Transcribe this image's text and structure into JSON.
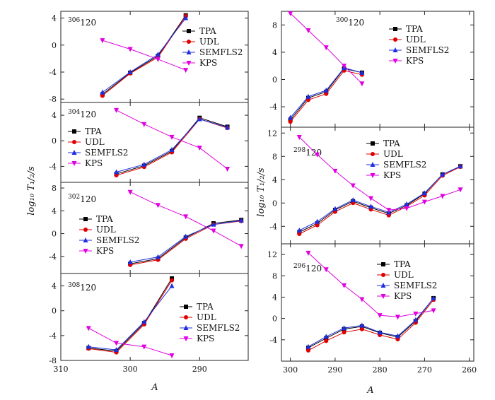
{
  "figure": {
    "ylabel": "log₁₀ T₁/₂/s",
    "xlabel": "A",
    "legend_labels": [
      "TPA",
      "UDL",
      "SEMFLS2",
      "KPS"
    ]
  },
  "colors": {
    "TPA": "#000000",
    "UDL": "#e00000",
    "SEMFLS2": "#1f2fe0",
    "KPS": "#e000e0"
  },
  "chart_data": [
    {
      "type": "line",
      "panel_label": "306 120",
      "x_ticks": [
        310,
        300,
        290
      ],
      "xlim": [
        310,
        283
      ],
      "ylim": [
        -8.5,
        5
      ],
      "y_ticks": [
        4,
        0,
        -4,
        -8
      ],
      "series": [
        {
          "name": "TPA",
          "x": [
            304,
            300,
            296,
            292
          ],
          "y": [
            -7.3,
            -4.1,
            -1.6,
            4.4
          ]
        },
        {
          "name": "UDL",
          "x": [
            304,
            300,
            296,
            292
          ],
          "y": [
            -7.5,
            -4.2,
            -1.8,
            4.3
          ]
        },
        {
          "name": "SEMFLS2",
          "x": [
            304,
            300,
            296,
            292
          ],
          "y": [
            -7.0,
            -4.0,
            -1.4,
            4.0
          ]
        },
        {
          "name": "KPS",
          "x": [
            304,
            300,
            296,
            292
          ],
          "y": [
            0.7,
            -0.6,
            -2.1,
            -3.7
          ]
        }
      ]
    },
    {
      "type": "line",
      "panel_label": "304 120",
      "x_ticks": [
        310,
        300,
        290
      ],
      "xlim": [
        310,
        283
      ],
      "ylim": [
        -6.5,
        6
      ],
      "y_ticks": [
        4,
        0,
        -4
      ],
      "series": [
        {
          "name": "TPA",
          "x": [
            302,
            298,
            294,
            290,
            286
          ],
          "y": [
            -5.2,
            -3.9,
            -1.6,
            3.6,
            2.2
          ]
        },
        {
          "name": "UDL",
          "x": [
            302,
            298,
            294,
            290,
            286
          ],
          "y": [
            -5.4,
            -4.1,
            -1.8,
            3.4,
            2.0
          ]
        },
        {
          "name": "SEMFLS2",
          "x": [
            302,
            298,
            294,
            290,
            286
          ],
          "y": [
            -4.9,
            -3.7,
            -1.4,
            3.4,
            2.1
          ]
        },
        {
          "name": "KPS",
          "x": [
            302,
            298,
            294,
            290,
            286
          ],
          "y": [
            4.8,
            2.6,
            0.6,
            -1.1,
            -4.4
          ]
        }
      ]
    },
    {
      "type": "line",
      "panel_label": "302 120",
      "x_ticks": [
        310,
        300,
        290
      ],
      "xlim": [
        310,
        283
      ],
      "ylim": [
        -7,
        9
      ],
      "y_ticks": [
        8,
        4,
        0,
        -4
      ],
      "series": [
        {
          "name": "TPA",
          "x": [
            300,
            296,
            292,
            288,
            284
          ],
          "y": [
            -5.3,
            -4.4,
            -0.7,
            1.8,
            2.4
          ]
        },
        {
          "name": "UDL",
          "x": [
            300,
            296,
            292,
            288,
            284
          ],
          "y": [
            -5.5,
            -4.6,
            -0.9,
            1.6,
            2.2
          ]
        },
        {
          "name": "SEMFLS2",
          "x": [
            300,
            296,
            292,
            288,
            284
          ],
          "y": [
            -5.0,
            -4.1,
            -0.5,
            1.6,
            2.3
          ]
        },
        {
          "name": "KPS",
          "x": [
            300,
            296,
            292,
            288,
            284
          ],
          "y": [
            7.3,
            5.0,
            3.0,
            0.5,
            -2.2
          ]
        }
      ]
    },
    {
      "type": "line",
      "panel_label": "308 120",
      "x_ticks": [
        310,
        300,
        290
      ],
      "xlim": [
        310,
        283
      ],
      "ylim": [
        -8,
        6
      ],
      "y_ticks": [
        4,
        0,
        -4,
        -8
      ],
      "series": [
        {
          "name": "TPA",
          "x": [
            306,
            302,
            298,
            294
          ],
          "y": [
            -6.0,
            -6.5,
            -2.0,
            5.2
          ]
        },
        {
          "name": "UDL",
          "x": [
            306,
            302,
            298,
            294
          ],
          "y": [
            -6.1,
            -6.7,
            -2.2,
            4.9
          ]
        },
        {
          "name": "SEMFLS2",
          "x": [
            306,
            302,
            298,
            294
          ],
          "y": [
            -5.8,
            -6.3,
            -1.8,
            4.0
          ]
        },
        {
          "name": "KPS",
          "x": [
            306,
            302,
            298,
            294
          ],
          "y": [
            -2.8,
            -5.2,
            -5.8,
            -7.2
          ]
        }
      ]
    },
    {
      "type": "line",
      "panel_label": "300 120",
      "x_ticks": [
        300,
        290,
        280,
        270,
        260
      ],
      "xlim": [
        302,
        259
      ],
      "ylim": [
        -7,
        10
      ],
      "y_ticks": [
        8,
        4,
        0,
        -4
      ],
      "series": [
        {
          "name": "TPA",
          "x": [
            300,
            296,
            292,
            288,
            284
          ],
          "y": [
            -5.9,
            -2.7,
            -1.8,
            1.6,
            1.0
          ]
        },
        {
          "name": "UDL",
          "x": [
            300,
            296,
            292,
            288,
            284
          ],
          "y": [
            -6.2,
            -3.0,
            -2.1,
            1.3,
            0.7
          ]
        },
        {
          "name": "SEMFLS2",
          "x": [
            300,
            296,
            292,
            288,
            284
          ],
          "y": [
            -5.6,
            -2.5,
            -1.6,
            1.7,
            1.0
          ]
        },
        {
          "name": "KPS",
          "x": [
            300,
            296,
            292,
            288,
            284
          ],
          "y": [
            9.7,
            7.2,
            4.7,
            2.0,
            -0.6
          ]
        }
      ]
    },
    {
      "type": "line",
      "panel_label": "298 120",
      "x_ticks": [
        300,
        290,
        280,
        270,
        260
      ],
      "xlim": [
        302,
        259
      ],
      "ylim": [
        -7,
        13
      ],
      "y_ticks": [
        12,
        8,
        4,
        0,
        -4
      ],
      "series": [
        {
          "name": "TPA",
          "x": [
            298,
            294,
            290,
            286,
            282,
            278,
            274,
            270,
            266,
            262
          ],
          "y": [
            -5.0,
            -3.5,
            -1.2,
            0.3,
            -0.8,
            -1.8,
            -0.4,
            1.6,
            4.9,
            6.3
          ]
        },
        {
          "name": "UDL",
          "x": [
            298,
            294,
            290,
            286,
            282,
            278,
            274,
            270,
            266,
            262
          ],
          "y": [
            -5.3,
            -3.8,
            -1.5,
            0.0,
            -1.1,
            -2.1,
            -0.6,
            1.3,
            4.7,
            6.2
          ]
        },
        {
          "name": "SEMFLS2",
          "x": [
            298,
            294,
            290,
            286,
            282,
            278,
            274,
            270,
            266,
            262
          ],
          "y": [
            -4.7,
            -3.2,
            -1.0,
            0.5,
            -0.6,
            -1.6,
            -0.2,
            1.7,
            4.9,
            6.3
          ]
        },
        {
          "name": "KPS",
          "x": [
            298,
            294,
            290,
            286,
            282,
            278,
            274,
            270,
            266,
            262
          ],
          "y": [
            11.3,
            8.3,
            5.5,
            3.0,
            0.8,
            -1.2,
            -0.9,
            0.2,
            1.2,
            2.3
          ]
        }
      ]
    },
    {
      "type": "line",
      "panel_label": "296 120",
      "x_ticks": [
        300,
        290,
        280,
        270,
        260
      ],
      "xlim": [
        302,
        259
      ],
      "ylim": [
        -8,
        14
      ],
      "y_ticks": [
        12,
        8,
        4,
        0,
        -4
      ],
      "series": [
        {
          "name": "TPA",
          "x": [
            296,
            292,
            288,
            284,
            280,
            276,
            272,
            268
          ],
          "y": [
            -5.5,
            -3.7,
            -2.0,
            -1.5,
            -2.7,
            -3.5,
            -0.5,
            3.8
          ]
        },
        {
          "name": "UDL",
          "x": [
            296,
            292,
            288,
            284,
            280,
            276,
            272,
            268
          ],
          "y": [
            -6.0,
            -4.2,
            -2.6,
            -2.0,
            -3.1,
            -3.9,
            -0.8,
            3.5
          ]
        },
        {
          "name": "SEMFLS2",
          "x": [
            296,
            292,
            288,
            284,
            280,
            276,
            272,
            268
          ],
          "y": [
            -5.3,
            -3.4,
            -1.8,
            -1.3,
            -2.6,
            -3.3,
            -0.3,
            3.8
          ]
        },
        {
          "name": "KPS",
          "x": [
            296,
            292,
            288,
            284,
            280,
            276,
            272,
            268
          ],
          "y": [
            12.3,
            9.2,
            6.2,
            3.6,
            0.6,
            0.3,
            0.9,
            1.5
          ]
        }
      ]
    }
  ]
}
